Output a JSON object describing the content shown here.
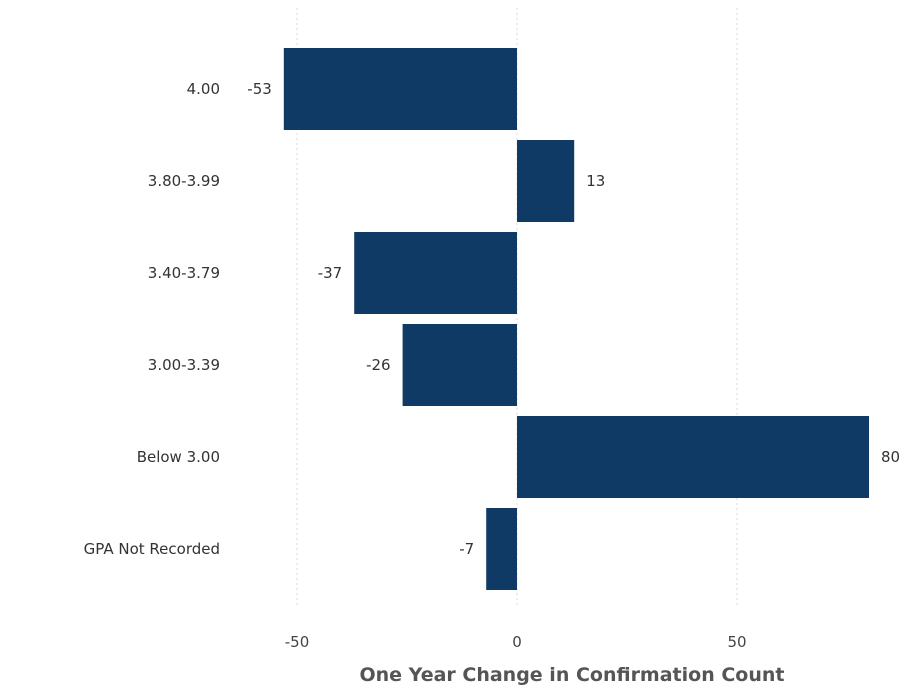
{
  "chart_data": {
    "type": "bar",
    "orientation": "horizontal",
    "categories": [
      "4.00",
      "3.80-3.99",
      "3.40-3.79",
      "3.00-3.39",
      "Below 3.00",
      "GPA Not Recorded"
    ],
    "values": [
      -53,
      13,
      -37,
      -26,
      80,
      -7
    ],
    "data_labels": [
      "-53",
      "13",
      "-37",
      "-26",
      "80",
      "-7"
    ],
    "xlabel": "One Year Change in Confirmation Count",
    "ylabel": "",
    "xlim": [
      -60,
      85
    ],
    "x_ticks": [
      -50,
      0,
      50
    ],
    "x_tick_labels": [
      "-50",
      "0",
      "50"
    ],
    "grid": true,
    "bar_color": "#0f3a66"
  }
}
